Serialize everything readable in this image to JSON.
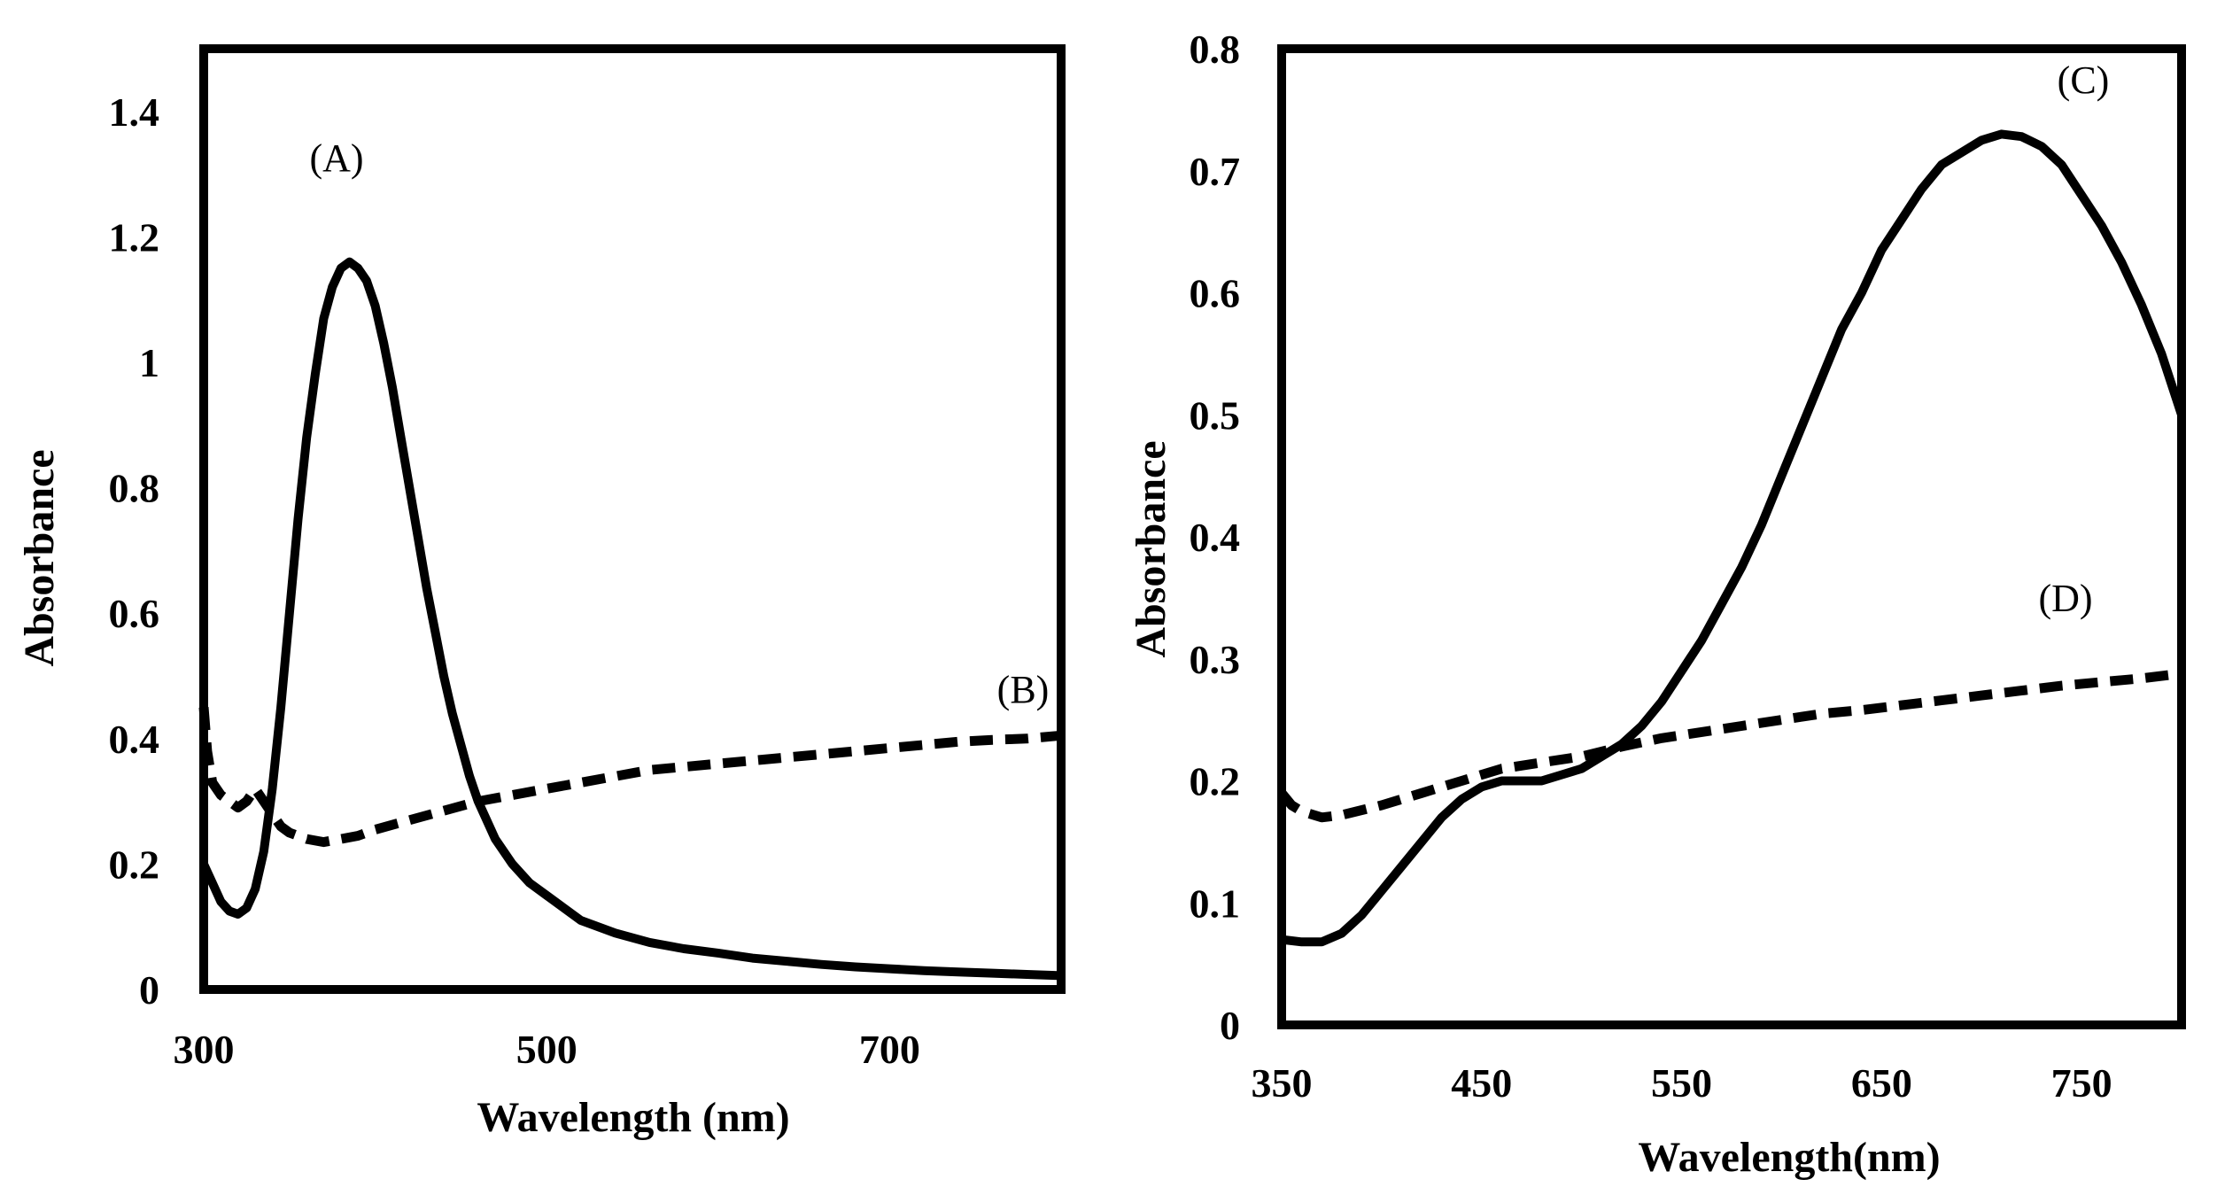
{
  "colors": {
    "line": "#000000",
    "background": "#ffffff"
  },
  "chart_data": [
    {
      "type": "line",
      "panel": "left",
      "xlabel": "Wavelength (nm)",
      "ylabel": "Absorbance",
      "xlim": [
        300,
        800
      ],
      "ylim": [
        0,
        1.5
      ],
      "x_ticks": [
        300,
        500,
        700
      ],
      "x_tick_labels": [
        "300",
        "500",
        "700"
      ],
      "y_ticks": [
        0,
        0.2,
        0.4,
        0.6,
        0.8,
        1,
        1.2,
        1.4
      ],
      "y_tick_labels": [
        "0",
        "0.2",
        "0.4",
        "0.6",
        "0.8",
        "1",
        "1.2",
        "1.4"
      ],
      "grid": false,
      "series": [
        {
          "name": "(A)",
          "style": "solid",
          "x": [
            300,
            305,
            310,
            315,
            320,
            325,
            330,
            335,
            340,
            345,
            350,
            355,
            360,
            365,
            370,
            375,
            380,
            385,
            390,
            395,
            400,
            405,
            410,
            415,
            420,
            425,
            430,
            435,
            440,
            445,
            450,
            455,
            460,
            470,
            480,
            490,
            500,
            510,
            520,
            540,
            560,
            580,
            600,
            620,
            640,
            660,
            680,
            700,
            720,
            740,
            760,
            780,
            800
          ],
          "values": [
            0.2,
            0.17,
            0.14,
            0.125,
            0.12,
            0.13,
            0.16,
            0.22,
            0.32,
            0.45,
            0.6,
            0.75,
            0.88,
            0.98,
            1.07,
            1.12,
            1.15,
            1.16,
            1.15,
            1.13,
            1.09,
            1.03,
            0.96,
            0.88,
            0.8,
            0.72,
            0.64,
            0.57,
            0.5,
            0.44,
            0.39,
            0.34,
            0.3,
            0.24,
            0.2,
            0.17,
            0.15,
            0.13,
            0.11,
            0.09,
            0.075,
            0.065,
            0.058,
            0.05,
            0.045,
            0.04,
            0.036,
            0.033,
            0.03,
            0.028,
            0.026,
            0.024,
            0.022
          ]
        },
        {
          "name": "(B)",
          "style": "dashed",
          "x": [
            300,
            302,
            305,
            310,
            315,
            320,
            325,
            330,
            335,
            340,
            345,
            350,
            360,
            370,
            380,
            390,
            400,
            420,
            440,
            460,
            480,
            500,
            520,
            540,
            560,
            580,
            600,
            620,
            640,
            660,
            680,
            700,
            720,
            740,
            760,
            780,
            800
          ],
          "values": [
            0.45,
            0.38,
            0.33,
            0.31,
            0.3,
            0.29,
            0.3,
            0.32,
            0.3,
            0.28,
            0.26,
            0.25,
            0.24,
            0.235,
            0.24,
            0.245,
            0.255,
            0.27,
            0.285,
            0.3,
            0.31,
            0.32,
            0.33,
            0.34,
            0.35,
            0.355,
            0.36,
            0.365,
            0.37,
            0.375,
            0.38,
            0.385,
            0.39,
            0.395,
            0.398,
            0.4,
            0.405
          ]
        }
      ]
    },
    {
      "type": "line",
      "panel": "right",
      "xlabel": "Wavelength(nm)",
      "ylabel": "Absorbance",
      "xlim": [
        350,
        800
      ],
      "ylim": [
        0,
        0.8
      ],
      "x_ticks": [
        350,
        450,
        550,
        650,
        750
      ],
      "x_tick_labels": [
        "350",
        "450",
        "550",
        "650",
        "750"
      ],
      "y_ticks": [
        0,
        0.1,
        0.2,
        0.3,
        0.4,
        0.5,
        0.6,
        0.7,
        0.8
      ],
      "y_tick_labels": [
        "0",
        "0.1",
        "0.2",
        "0.3",
        "0.4",
        "0.5",
        "0.6",
        "0.7",
        "0.8"
      ],
      "grid": false,
      "series": [
        {
          "name": "(C)",
          "style": "solid",
          "x": [
            350,
            360,
            370,
            380,
            390,
            400,
            410,
            420,
            430,
            440,
            450,
            460,
            470,
            480,
            490,
            500,
            510,
            520,
            530,
            540,
            550,
            560,
            570,
            580,
            590,
            600,
            610,
            620,
            630,
            640,
            650,
            660,
            670,
            680,
            690,
            700,
            710,
            720,
            730,
            740,
            750,
            760,
            770,
            780,
            790,
            800
          ],
          "values": [
            0.07,
            0.068,
            0.068,
            0.075,
            0.09,
            0.11,
            0.13,
            0.15,
            0.17,
            0.185,
            0.195,
            0.2,
            0.2,
            0.2,
            0.205,
            0.21,
            0.22,
            0.23,
            0.245,
            0.265,
            0.29,
            0.315,
            0.345,
            0.375,
            0.41,
            0.45,
            0.49,
            0.53,
            0.57,
            0.6,
            0.635,
            0.66,
            0.685,
            0.705,
            0.715,
            0.725,
            0.73,
            0.728,
            0.72,
            0.705,
            0.68,
            0.655,
            0.625,
            0.59,
            0.55,
            0.5
          ]
        },
        {
          "name": "(D)",
          "style": "dashed",
          "x": [
            350,
            355,
            360,
            370,
            380,
            400,
            420,
            440,
            460,
            480,
            500,
            520,
            540,
            560,
            580,
            600,
            620,
            640,
            660,
            680,
            700,
            720,
            740,
            760,
            780,
            800
          ],
          "values": [
            0.19,
            0.18,
            0.175,
            0.17,
            0.172,
            0.18,
            0.19,
            0.2,
            0.21,
            0.215,
            0.22,
            0.228,
            0.235,
            0.24,
            0.245,
            0.25,
            0.255,
            0.258,
            0.262,
            0.266,
            0.27,
            0.274,
            0.278,
            0.281,
            0.284,
            0.288
          ]
        }
      ]
    }
  ]
}
